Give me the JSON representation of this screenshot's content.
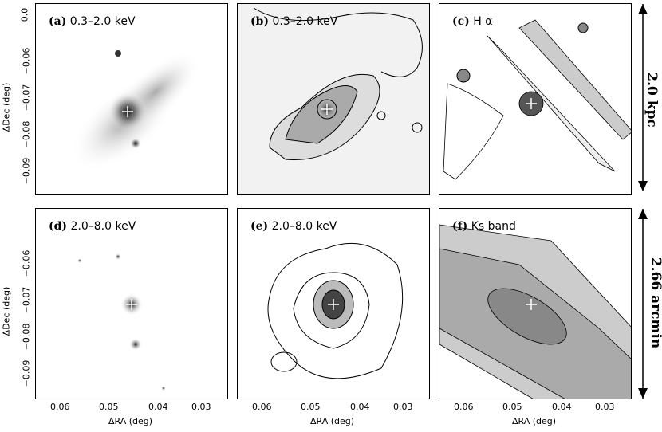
{
  "figure": {
    "panels": [
      {
        "tag": "(a)",
        "label": "0.3–2.0 keV"
      },
      {
        "tag": "(b)",
        "label": "0.3–2.0 keV"
      },
      {
        "tag": "(c)",
        "label": "H α"
      },
      {
        "tag": "(d)",
        "label": "2.0–8.0 keV"
      },
      {
        "tag": "(e)",
        "label": "2.0–8.0 keV"
      },
      {
        "tag": "(f)",
        "label": "Ks band"
      }
    ],
    "y_axis": {
      "label": "ΔDec (deg)",
      "ticks": [
        "0.0",
        "−0.06",
        "−0.07",
        "−0.08",
        "−0.09"
      ]
    },
    "x_axis": {
      "label": "ΔRA (deg)",
      "ticks": [
        "0.06",
        "0.05",
        "0.04",
        "0.03"
      ]
    },
    "scale_bars": {
      "top": "2.0 kpc",
      "bottom": "2.66 arcmin"
    }
  }
}
